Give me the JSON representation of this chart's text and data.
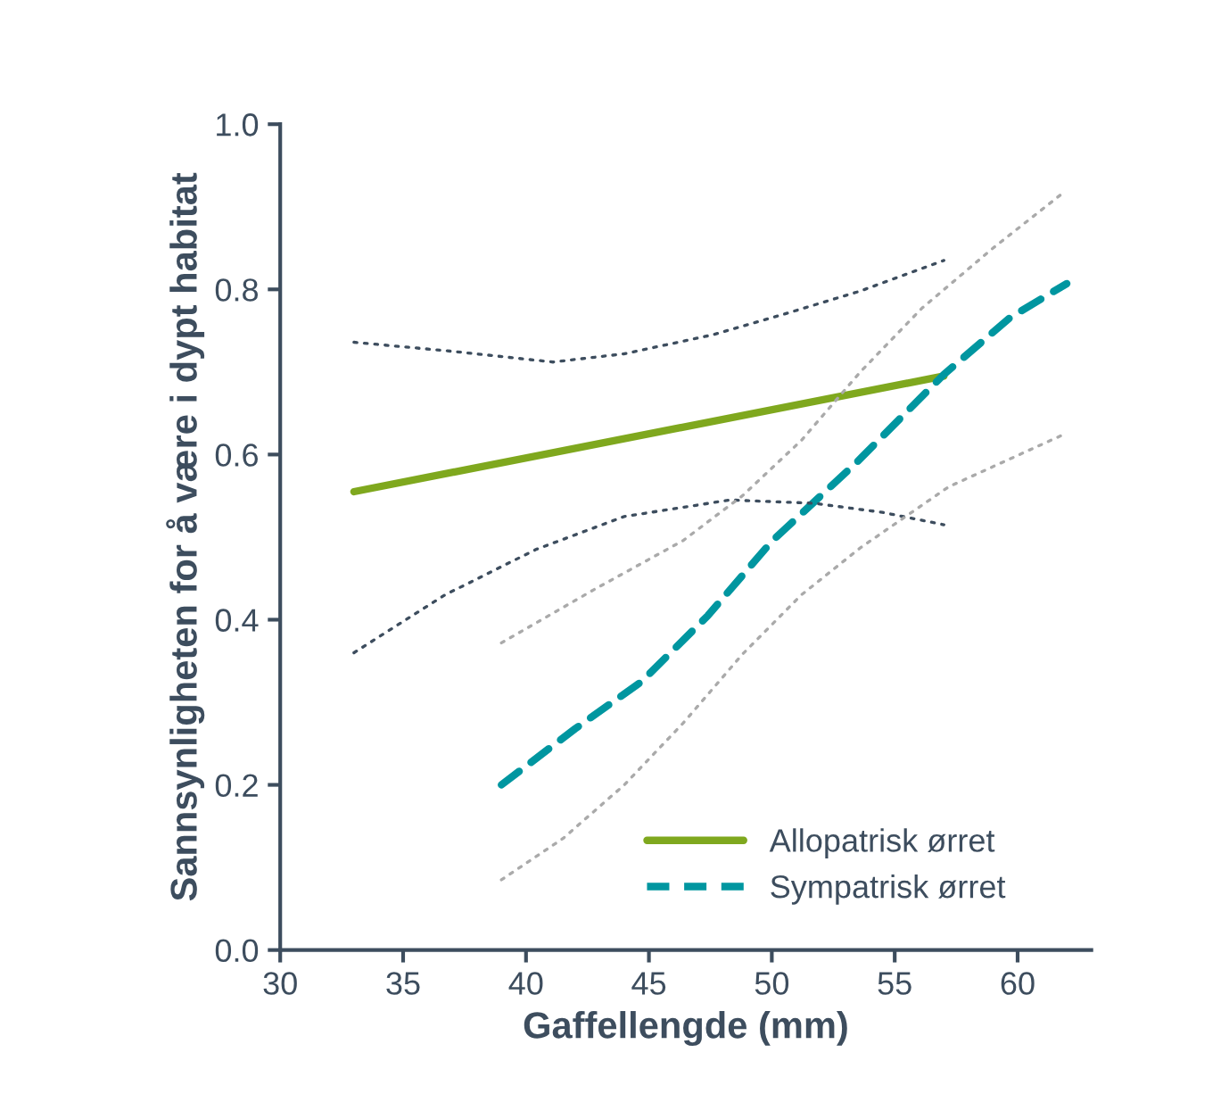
{
  "chart_data": {
    "type": "line",
    "xlabel": "Gaffellengde (mm)",
    "ylabel": "Sannsynligheten for å være i dypt habitat",
    "xlim": [
      30,
      63
    ],
    "xticks": [
      30,
      35,
      40,
      45,
      50,
      55,
      60
    ],
    "ylim": [
      0,
      1.0
    ],
    "yticks": [
      {
        "value": 0,
        "label": "0.0"
      },
      {
        "value": 0.2,
        "label": "0.2"
      },
      {
        "value": 0.4,
        "label": "0.4"
      },
      {
        "value": 0.6,
        "label": "0.6"
      },
      {
        "value": 0.8,
        "label": "0.8"
      },
      {
        "value": 1.0,
        "label": "1.0"
      }
    ],
    "grid": false,
    "legend": "bottom right",
    "series": [
      {
        "name": "Allopatrisk ørret",
        "color": "#7fa81e",
        "line_style": "solid",
        "x": [
          33,
          57
        ],
        "values": [
          0.555,
          0.695
        ]
      },
      {
        "name": "Sympatrisk ørret",
        "color": "#0096a0",
        "line_style": "dashed",
        "x": [
          39,
          42.0,
          44.7,
          47.4,
          50.0,
          53.4,
          57.0,
          59.7,
          62.0
        ],
        "values": [
          0.2,
          0.268,
          0.325,
          0.405,
          0.495,
          0.589,
          0.697,
          0.766,
          0.807
        ]
      },
      {
        "color": "#3d4d5e",
        "line_style": "dotted",
        "x": [
          33,
          37,
          41.1,
          44,
          47.6,
          50.5,
          53.6,
          57
        ],
        "values": [
          0.736,
          0.725,
          0.712,
          0.722,
          0.745,
          0.77,
          0.798,
          0.835
        ]
      },
      {
        "color": "#3d4d5e",
        "line_style": "dotted",
        "x": [
          33,
          36.7,
          40.4,
          44,
          48.3,
          51.7,
          54.5,
          57
        ],
        "values": [
          0.36,
          0.43,
          0.485,
          0.525,
          0.545,
          0.541,
          0.53,
          0.515
        ]
      },
      {
        "color": "#aaaaaa",
        "line_style": "dotted",
        "x": [
          39,
          42.8,
          46.4,
          48.8,
          51.2,
          53.6,
          56.1,
          59,
          61.9
        ],
        "values": [
          0.372,
          0.437,
          0.496,
          0.55,
          0.617,
          0.7,
          0.777,
          0.85,
          0.918
        ]
      },
      {
        "color": "#aaaaaa",
        "line_style": "dotted",
        "x": [
          39,
          41.5,
          44.0,
          46.4,
          48.8,
          51.2,
          53.6,
          57.2,
          62
        ],
        "values": [
          0.085,
          0.135,
          0.2,
          0.275,
          0.358,
          0.43,
          0.487,
          0.561,
          0.626
        ]
      }
    ]
  }
}
